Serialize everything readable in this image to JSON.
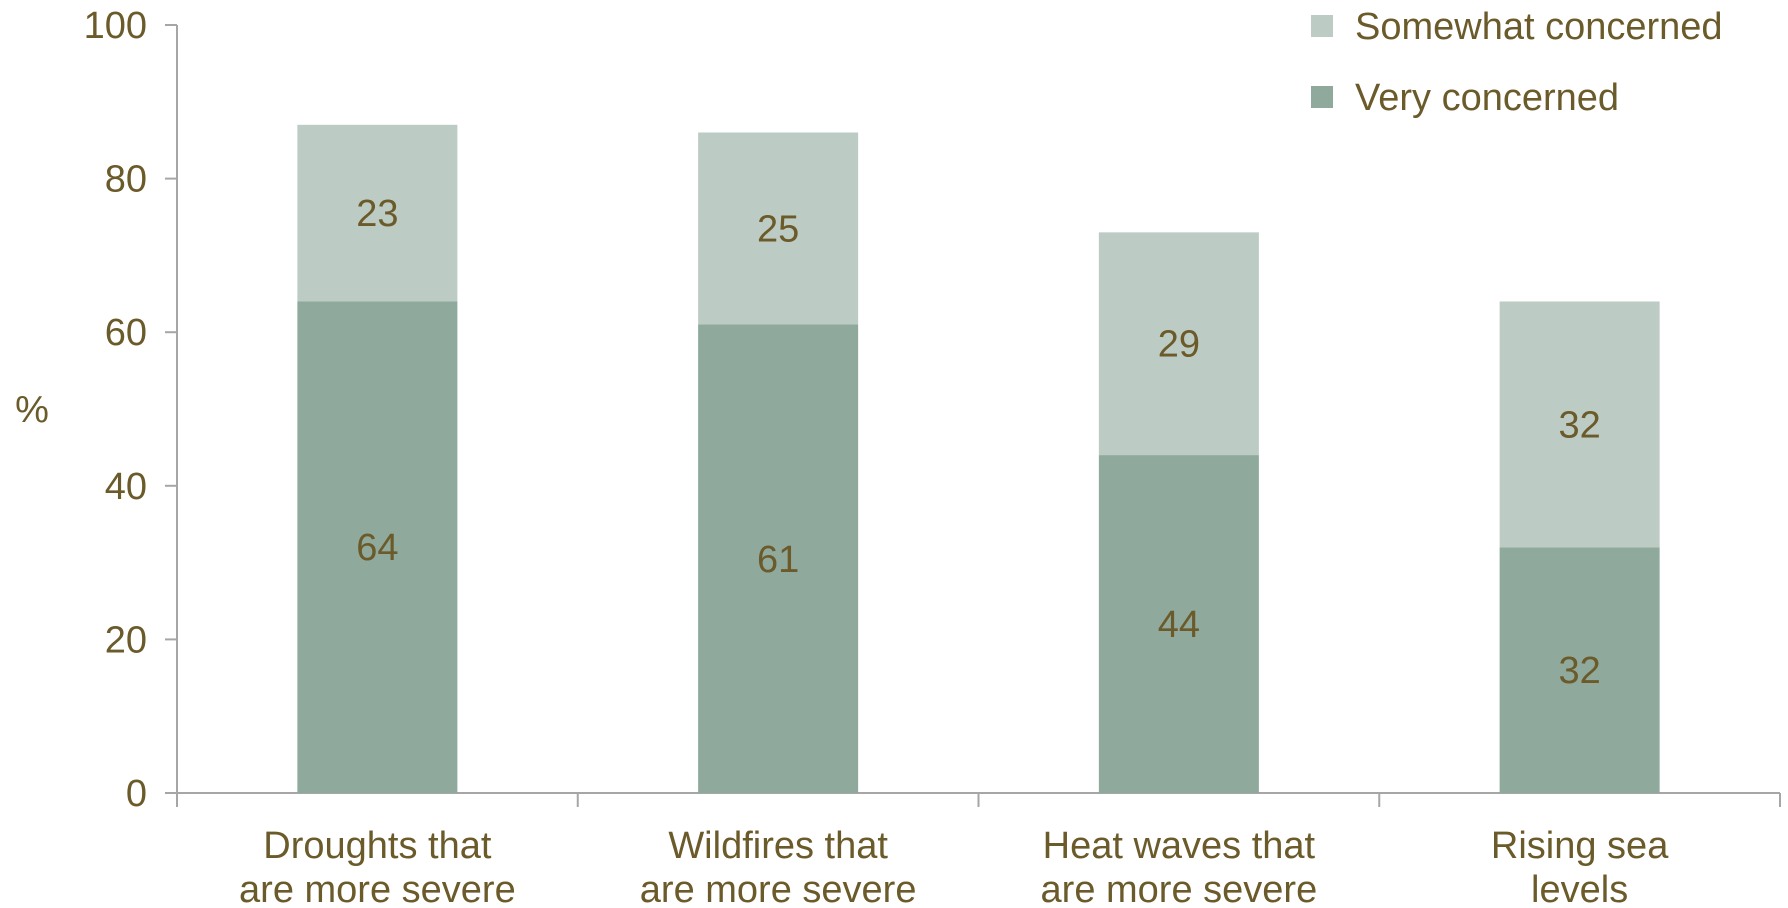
{
  "chart_data": {
    "type": "bar",
    "stacked": true,
    "categories": [
      [
        "Droughts that",
        "are more severe"
      ],
      [
        "Wildfires that",
        "are more severe"
      ],
      [
        "Heat waves that",
        "are more severe"
      ],
      [
        "Rising sea",
        "levels"
      ]
    ],
    "series": [
      {
        "name": "Very concerned",
        "values": [
          64,
          61,
          44,
          32
        ],
        "color": "#8fa99c"
      },
      {
        "name": "Somewhat concerned",
        "values": [
          23,
          25,
          29,
          32
        ],
        "color": "#bccbc3"
      }
    ],
    "ylabel": "%",
    "ylim": [
      0,
      100
    ],
    "yticks": [
      0,
      20,
      40,
      60,
      80,
      100
    ],
    "grid": false,
    "legend_position": "top-right",
    "legend_order": [
      "Somewhat concerned",
      "Very concerned"
    ],
    "text_color": "#6b5a2a",
    "axis_color": "#a6a6a6"
  }
}
